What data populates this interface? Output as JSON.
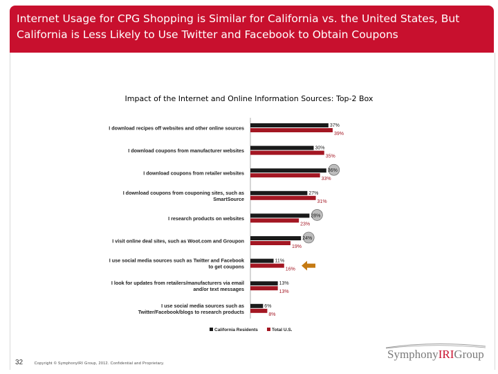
{
  "slide": {
    "title_line1": "Internet Usage for CPG Shopping is Similar for California vs. the United States, But",
    "title_line2": "California is Less Likely to Use Twitter and Facebook to Obtain Coupons",
    "page_number": "32",
    "copyright": "Copyright © SymphonyIRI Group, 2012. Confidential and Proprietary.",
    "logo": {
      "part1": "Symphony",
      "part2": "IRI",
      "part3": "Group"
    }
  },
  "colors": {
    "header_bg": "#c8102e",
    "series_california": "#1a1a1a",
    "series_us": "#a31622",
    "callout_circle": "#bdbdbd",
    "arrow": "#c57a12"
  },
  "chart_data": {
    "type": "bar",
    "orientation": "horizontal",
    "title": "Impact of the Internet and Online Information Sources:  Top-2 Box",
    "categories": [
      [
        "I download recipes off websites and other online sources"
      ],
      [
        "I download coupons from manufacturer websites"
      ],
      [
        "I download coupons from retailer websites"
      ],
      [
        "I download coupons from couponing sites, such as",
        "SmartSource"
      ],
      [
        "I research products on websites"
      ],
      [
        "I visit online deal sites, such as Woot.com and Groupon"
      ],
      [
        "I use social media sources such as Twitter and Facebook",
        "to get coupons"
      ],
      [
        "I look for updates from retailers/manufacturers via email",
        "and/or text messages"
      ],
      [
        "I use social media sources such as",
        "Twitter/Facebook/blogs to research products"
      ]
    ],
    "series": [
      {
        "name": "California Residents",
        "values": [
          37,
          30,
          36,
          27,
          28,
          24,
          11,
          13,
          6
        ]
      },
      {
        "name": "Total U.S.",
        "values": [
          39,
          35,
          33,
          31,
          23,
          19,
          16,
          13,
          8
        ]
      }
    ],
    "value_suffix": "%",
    "circled": [
      [
        2,
        0
      ],
      [
        4,
        0
      ],
      [
        5,
        0
      ]
    ],
    "arrow_category_index": 6,
    "legend_position": "bottom",
    "grid": false
  }
}
